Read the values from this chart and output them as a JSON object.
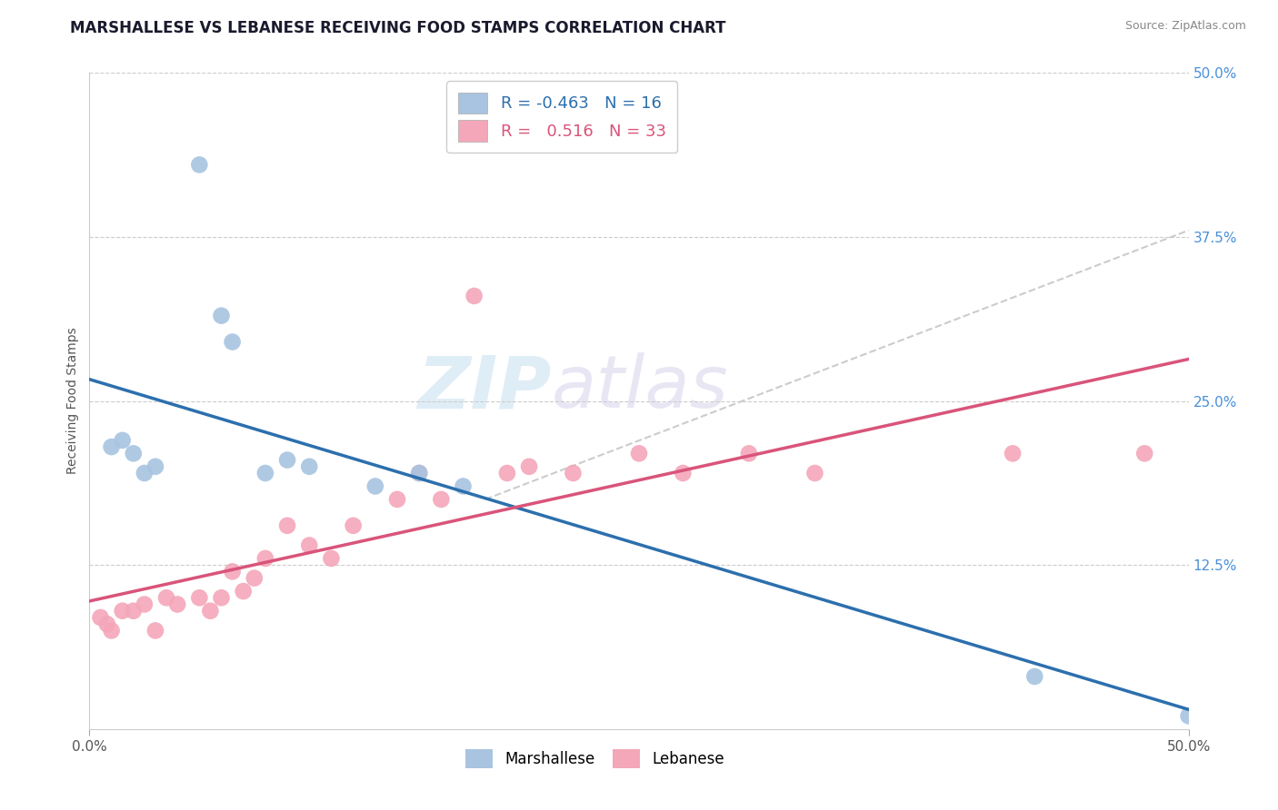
{
  "title": "MARSHALLESE VS LEBANESE RECEIVING FOOD STAMPS CORRELATION CHART",
  "source": "Source: ZipAtlas.com",
  "ylabel": "Receiving Food Stamps",
  "xlim": [
    0.0,
    0.5
  ],
  "ylim": [
    0.0,
    0.5
  ],
  "xticklabels": [
    "0.0%",
    "50.0%"
  ],
  "ytick_right_labels": [
    "50.0%",
    "37.5%",
    "25.0%",
    "12.5%"
  ],
  "ytick_right_values": [
    0.5,
    0.375,
    0.25,
    0.125
  ],
  "grid_values": [
    0.5,
    0.375,
    0.25,
    0.125
  ],
  "legend_R_marshallese": "-0.463",
  "legend_N_marshallese": "16",
  "legend_R_lebanese": "0.516",
  "legend_N_lebanese": "33",
  "marshallese_color": "#a8c4e0",
  "lebanese_color": "#f4a7b9",
  "trendline_marshallese_color": "#2c6fad",
  "trendline_lebanese_color": "#d9547a",
  "trendline_dashed_color": "#cccccc",
  "watermark_part1": "ZIP",
  "watermark_part2": "atlas",
  "marshallese_x": [
    0.01,
    0.015,
    0.02,
    0.025,
    0.03,
    0.05,
    0.06,
    0.065,
    0.08,
    0.09,
    0.1,
    0.13,
    0.15,
    0.17,
    0.43,
    0.5
  ],
  "marshallese_y": [
    0.215,
    0.22,
    0.21,
    0.195,
    0.2,
    0.43,
    0.315,
    0.295,
    0.195,
    0.205,
    0.2,
    0.185,
    0.195,
    0.185,
    0.04,
    0.01
  ],
  "lebanese_x": [
    0.005,
    0.008,
    0.01,
    0.015,
    0.02,
    0.025,
    0.03,
    0.035,
    0.04,
    0.05,
    0.055,
    0.06,
    0.065,
    0.07,
    0.075,
    0.08,
    0.09,
    0.1,
    0.11,
    0.12,
    0.14,
    0.15,
    0.16,
    0.175,
    0.19,
    0.2,
    0.22,
    0.25,
    0.27,
    0.3,
    0.33,
    0.42,
    0.48
  ],
  "lebanese_y": [
    0.085,
    0.08,
    0.075,
    0.09,
    0.09,
    0.095,
    0.075,
    0.1,
    0.095,
    0.1,
    0.09,
    0.1,
    0.12,
    0.105,
    0.115,
    0.13,
    0.155,
    0.14,
    0.13,
    0.155,
    0.175,
    0.195,
    0.175,
    0.33,
    0.195,
    0.2,
    0.195,
    0.21,
    0.195,
    0.21,
    0.195,
    0.21,
    0.21
  ],
  "background_color": "#ffffff",
  "title_fontsize": 12,
  "label_fontsize": 10,
  "legend_text_color": "#2c6fad"
}
